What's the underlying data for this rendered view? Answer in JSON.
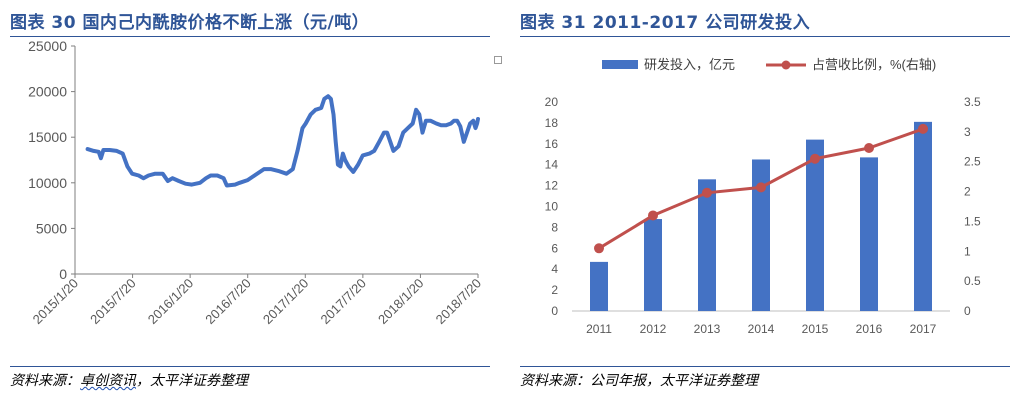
{
  "left": {
    "figure_title": "图表 30 国内己内酰胺价格不断上涨（元/吨）",
    "source": {
      "prefix": "资料来源：",
      "underlined": "卓创资讯",
      "suffix": "，太平洋证券整理"
    }
  },
  "right": {
    "figure_title": "图表 31 2011-2017 公司研发投入",
    "source": {
      "prefix": "资料来源：公司年报，太平洋证券整理",
      "underlined": "",
      "suffix": ""
    }
  },
  "colors": {
    "title": "#2f5597",
    "line_blue": "#4472c4",
    "bar": "#4472c4",
    "line_red": "#c0504d",
    "rule": "#2f5597"
  },
  "chart_data": [
    {
      "type": "line",
      "title": "",
      "xlabel": "",
      "ylabel": "",
      "ylim": [
        0,
        25000
      ],
      "y_ticks": [
        "0",
        "5000",
        "10000",
        "15000",
        "20000",
        "25000"
      ],
      "x_tick_labels": [
        "2015/1/20",
        "2015/7/20",
        "2016/1/20",
        "2016/7/20",
        "2017/1/20",
        "2017/7/20",
        "2018/1/20",
        "2018/7/20"
      ],
      "x_range": [
        "2015-01-20",
        "2018-07-20"
      ],
      "series": [
        {
          "name": "",
          "points": [
            [
              "2015-03-01",
              13700
            ],
            [
              "2015-03-20",
              13500
            ],
            [
              "2015-04-05",
              13400
            ],
            [
              "2015-04-12",
              12700
            ],
            [
              "2015-04-20",
              13600
            ],
            [
              "2015-05-10",
              13600
            ],
            [
              "2015-06-01",
              13500
            ],
            [
              "2015-06-20",
              13200
            ],
            [
              "2015-07-05",
              11800
            ],
            [
              "2015-07-20",
              11000
            ],
            [
              "2015-08-10",
              10800
            ],
            [
              "2015-08-25",
              10500
            ],
            [
              "2015-09-10",
              10800
            ],
            [
              "2015-10-01",
              11000
            ],
            [
              "2015-10-25",
              11000
            ],
            [
              "2015-11-10",
              10200
            ],
            [
              "2015-11-25",
              10500
            ],
            [
              "2015-12-15",
              10200
            ],
            [
              "2016-01-05",
              9900
            ],
            [
              "2016-01-25",
              9800
            ],
            [
              "2016-02-20",
              10000
            ],
            [
              "2016-03-10",
              10500
            ],
            [
              "2016-03-25",
              10800
            ],
            [
              "2016-04-15",
              10800
            ],
            [
              "2016-05-05",
              10500
            ],
            [
              "2016-05-15",
              9700
            ],
            [
              "2016-06-10",
              9800
            ],
            [
              "2016-06-25",
              10000
            ],
            [
              "2016-07-20",
              10300
            ],
            [
              "2016-08-15",
              10900
            ],
            [
              "2016-09-10",
              11500
            ],
            [
              "2016-10-01",
              11500
            ],
            [
              "2016-10-25",
              11300
            ],
            [
              "2016-11-20",
              11000
            ],
            [
              "2016-12-10",
              11500
            ],
            [
              "2016-12-25",
              13500
            ],
            [
              "2017-01-10",
              16000
            ],
            [
              "2017-01-20",
              16500
            ],
            [
              "2017-02-05",
              17500
            ],
            [
              "2017-02-20",
              18000
            ],
            [
              "2017-03-10",
              18200
            ],
            [
              "2017-03-20",
              19200
            ],
            [
              "2017-04-01",
              19500
            ],
            [
              "2017-04-10",
              19200
            ],
            [
              "2017-04-18",
              17500
            ],
            [
              "2017-04-25",
              14500
            ],
            [
              "2017-05-02",
              12000
            ],
            [
              "2017-05-10",
              11800
            ],
            [
              "2017-05-18",
              13200
            ],
            [
              "2017-05-25",
              12500
            ],
            [
              "2017-06-05",
              11800
            ],
            [
              "2017-06-20",
              11200
            ],
            [
              "2017-07-05",
              12000
            ],
            [
              "2017-07-20",
              13000
            ],
            [
              "2017-08-10",
              13200
            ],
            [
              "2017-08-25",
              13500
            ],
            [
              "2017-09-10",
              14500
            ],
            [
              "2017-09-25",
              15500
            ],
            [
              "2017-10-05",
              15500
            ],
            [
              "2017-10-15",
              14500
            ],
            [
              "2017-10-25",
              13500
            ],
            [
              "2017-11-10",
              14000
            ],
            [
              "2017-11-25",
              15500
            ],
            [
              "2017-12-10",
              16000
            ],
            [
              "2017-12-25",
              16500
            ],
            [
              "2018-01-05",
              18000
            ],
            [
              "2018-01-15",
              17500
            ],
            [
              "2018-01-25",
              15500
            ],
            [
              "2018-02-05",
              16800
            ],
            [
              "2018-02-20",
              16800
            ],
            [
              "2018-03-10",
              16500
            ],
            [
              "2018-03-25",
              16300
            ],
            [
              "2018-04-10",
              16300
            ],
            [
              "2018-04-25",
              16500
            ],
            [
              "2018-05-05",
              16800
            ],
            [
              "2018-05-15",
              16800
            ],
            [
              "2018-05-25",
              16200
            ],
            [
              "2018-06-05",
              14500
            ],
            [
              "2018-06-15",
              15500
            ],
            [
              "2018-06-25",
              16500
            ],
            [
              "2018-07-05",
              16800
            ],
            [
              "2018-07-12",
              16000
            ],
            [
              "2018-07-17",
              16500
            ],
            [
              "2018-07-20",
              17000
            ]
          ]
        }
      ],
      "grid": false
    },
    {
      "type": "bar",
      "title": "",
      "xlabel": "",
      "ylabel": "",
      "categories": [
        "2011",
        "2012",
        "2013",
        "2014",
        "2015",
        "2016",
        "2017"
      ],
      "ylim": [
        0,
        20
      ],
      "y_ticks": [
        "0",
        "2",
        "4",
        "6",
        "8",
        "10",
        "12",
        "14",
        "16",
        "18",
        "20"
      ],
      "y2lim": [
        0,
        3.5
      ],
      "y2_ticks": [
        "0",
        "0.5",
        "1",
        "1.5",
        "2",
        "2.5",
        "3",
        "3.5"
      ],
      "series": [
        {
          "name": "研发投入，亿元",
          "type": "bar",
          "axis": "left",
          "values": [
            4.7,
            8.8,
            12.6,
            14.5,
            16.4,
            14.7,
            18.1
          ]
        },
        {
          "name": "占营收比例，%(右轴)",
          "type": "line",
          "axis": "right",
          "values": [
            1.05,
            1.6,
            1.98,
            2.07,
            2.55,
            2.73,
            3.05
          ]
        }
      ],
      "legend": "top",
      "grid": false
    }
  ]
}
